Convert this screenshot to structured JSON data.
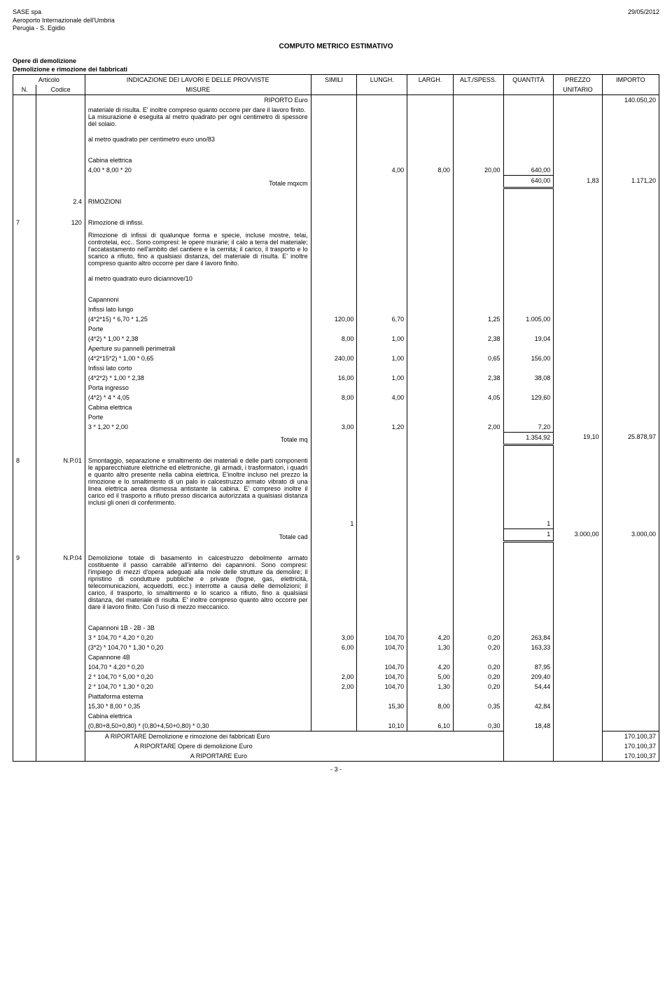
{
  "header": {
    "company": "SASE spa",
    "line2": "Aeroporto Internazionale dell'Umbria",
    "line3": "Perugia - S. Egidio",
    "date": "29/05/2012"
  },
  "title": "COMPUTO METRICO ESTIMATIVO",
  "subheader": {
    "line1": "Opere di demolizione",
    "line2": "Demolizione e rimozione dei fabbricati"
  },
  "columns": {
    "articolo": "Articolo",
    "n": "N.",
    "codice": "Codice",
    "indicazione": "INDICAZIONE DEI LAVORI E DELLE PROVVISTE",
    "misure": "MISURE",
    "simili": "SIMILI",
    "lungh": "LUNGH.",
    "largh": "LARGH.",
    "alt": "ALT./SPESS.",
    "quantita": "QUANTITÀ",
    "prezzo": "PREZZO",
    "unitario": "UNITARIO",
    "importo": "IMPORTO"
  },
  "riporto": {
    "label": "RIPORTO Euro",
    "value": "140.050,20"
  },
  "block1": {
    "desc_cont": "materiale di risulta. E' inoltre compreso quanto occorre per dare il lavoro finito.\nLa misurazione è eseguita al metro quadrato per ogni centimetro di spessore del solaio.",
    "desc_price": "al metro quadrato per centimetro euro uno/83",
    "row_label": "Cabina elettrica",
    "row_formula": "4,00 * 8,00 * 20",
    "r": {
      "simili": "",
      "lungh": "4,00",
      "largh": "8,00",
      "alt": "20,00",
      "qta": "640,00"
    },
    "tot_label": "Totale mqxcm",
    "tot_qta": "640,00",
    "tot_unit": "1,83",
    "tot_imp": "1.171,20"
  },
  "sec24": {
    "code": "2.4",
    "label": "RIMOZIONI"
  },
  "item7": {
    "n": "7",
    "code": "120",
    "titolo": "Rimozione di infissi.",
    "desc": "Rimozione di infissi di qualunque forma e specie, incluse mostre, telai, controtelai, ecc.. Sono compresi: le opere murarie; il calo a terra del materiale; l'accatastamento nell'ambito del cantiere e la cernita; il carico, il trasporto e lo scarico a rifiuto, fino a qualsiasi distanza, del materiale di risulta. E' inoltre compreso quanto altro occorre per dare il lavoro finito.",
    "price_txt": "al metro quadrato euro diciannove/10",
    "rows": [
      {
        "l1": "Capannoni"
      },
      {
        "l1": "Infissi lato lungo"
      },
      {
        "l1": "(4*2*15) * 6,70 * 1,25",
        "simili": "120,00",
        "lungh": "6,70",
        "alt": "1,25",
        "qta": "1.005,00"
      },
      {
        "l1": "Porte"
      },
      {
        "l1": "(4*2) * 1,00 * 2,38",
        "simili": "8,00",
        "lungh": "1,00",
        "alt": "2,38",
        "qta": "19,04"
      },
      {
        "l1": "Aperture su pannelli perimetrali"
      },
      {
        "l1": "(4*2*15*2) * 1,00 * 0,65",
        "simili": "240,00",
        "lungh": "1,00",
        "alt": "0,65",
        "qta": "156,00"
      },
      {
        "l1": "Infissi lato corto"
      },
      {
        "l1": "(4*2*2) * 1,00 * 2,38",
        "simili": "16,00",
        "lungh": "1,00",
        "alt": "2,38",
        "qta": "38,08"
      },
      {
        "l1": "Porta ingresso"
      },
      {
        "l1": "(4*2) * 4 * 4,05",
        "simili": "8,00",
        "lungh": "4,00",
        "alt": "4,05",
        "qta": "129,60"
      },
      {
        "l1": "Cabina elettrica"
      },
      {
        "l1": "Porte"
      },
      {
        "l1": "3 * 1,20 * 2,00",
        "simili": "3,00",
        "lungh": "1,20",
        "alt": "2,00",
        "qta": "7,20"
      }
    ],
    "tot_label": "Totale mq",
    "tot_qta": "1.354,92",
    "tot_unit": "19,10",
    "tot_imp": "25.878,97"
  },
  "item8": {
    "n": "8",
    "code": "N.P.01",
    "desc": "Smontaggio, separazione e smaltimento dei materiali e delle parti componenti le apparecchiature elettriche ed elettroniche, gli armadi, i trasformatori, i quadri e quanto altro presente nella cabina elettrica. E'inoltre incluso nel prezzo la rimozione e lo smaltimento di un palo in calcestruzzo armato vibrato di una linea elettrica aerea dismessa antistante la cabina. E' compreso inoltre il carico ed il trasporto a rifiuto presso discarica autorizzata a qualsiasi distanza inclusi gli oneri di conferimento.",
    "row": {
      "simili": "1",
      "qta": "1"
    },
    "tot_label": "Totale cad",
    "tot_qta": "1",
    "tot_unit": "3.000,00",
    "tot_imp": "3.000,00"
  },
  "item9": {
    "n": "9",
    "code": "N.P.04",
    "desc": "Demolizione totale di basamento in calcestruzzo debolmente armato costituente il passo carrabile all'interno dei capannoni. Sono compresi: l'impiego di mezzi d'opera adeguati alla mole delle strutture da demolire; il ripristino di condutture pubbliche e private (fogne, gas, elettricità, telecomunicazioni, acquedotti, ecc.) interrotte a causa delle demolizioni; il carico, il trasporto, lo smaltimento e lo scarico a rifiuto, fino a qualsiasi distanza, del materiale di risulta. E' inoltre compreso quanto altro occorre per dare il lavoro finito. Con l'uso di mezzo meccanico.",
    "rows": [
      {
        "l1": "Capannoni 1B - 2B - 3B"
      },
      {
        "l1": "3 * 104,70 * 4,20 * 0,20",
        "simili": "3,00",
        "lungh": "104,70",
        "largh": "4,20",
        "alt": "0,20",
        "qta": "263,84"
      },
      {
        "l1": "(3*2) * 104,70 * 1,30 * 0,20",
        "simili": "6,00",
        "lungh": "104,70",
        "largh": "1,30",
        "alt": "0,20",
        "qta": "163,33"
      },
      {
        "l1": "Capannone 4B"
      },
      {
        "l1": "104,70 * 4,20 * 0,20",
        "simili": "",
        "lungh": "104,70",
        "largh": "4,20",
        "alt": "0,20",
        "qta": "87,95"
      },
      {
        "l1": "2 * 104,70 * 5,00 * 0,20",
        "simili": "2,00",
        "lungh": "104,70",
        "largh": "5,00",
        "alt": "0,20",
        "qta": "209,40"
      },
      {
        "l1": "2 * 104,70 * 1,30 * 0,20",
        "simili": "2,00",
        "lungh": "104,70",
        "largh": "1,30",
        "alt": "0,20",
        "qta": "54,44"
      },
      {
        "l1": "Piattaforma esterna"
      },
      {
        "l1": "15,30 * 8,00 * 0,35",
        "simili": "",
        "lungh": "15,30",
        "largh": "8,00",
        "alt": "0,35",
        "qta": "42,84"
      },
      {
        "l1": "Cabina elettrica"
      },
      {
        "l1": "(0,80+8,50+0,80) * (0,80+4,50+0,80) * 0,30",
        "simili": "",
        "lungh": "10,10",
        "largh": "6,10",
        "alt": "0,30",
        "qta": "18,48"
      }
    ]
  },
  "footer": {
    "l1": {
      "label": "A RIPORTARE Demolizione e rimozione dei fabbricati  Euro",
      "val": "170.100,37"
    },
    "l2": {
      "label": "A RIPORTARE Opere di demolizione Euro",
      "val": "170.100,37"
    },
    "l3": {
      "label": "A RIPORTARE Euro",
      "val": "170.100,37"
    }
  },
  "page": "-  3  -"
}
